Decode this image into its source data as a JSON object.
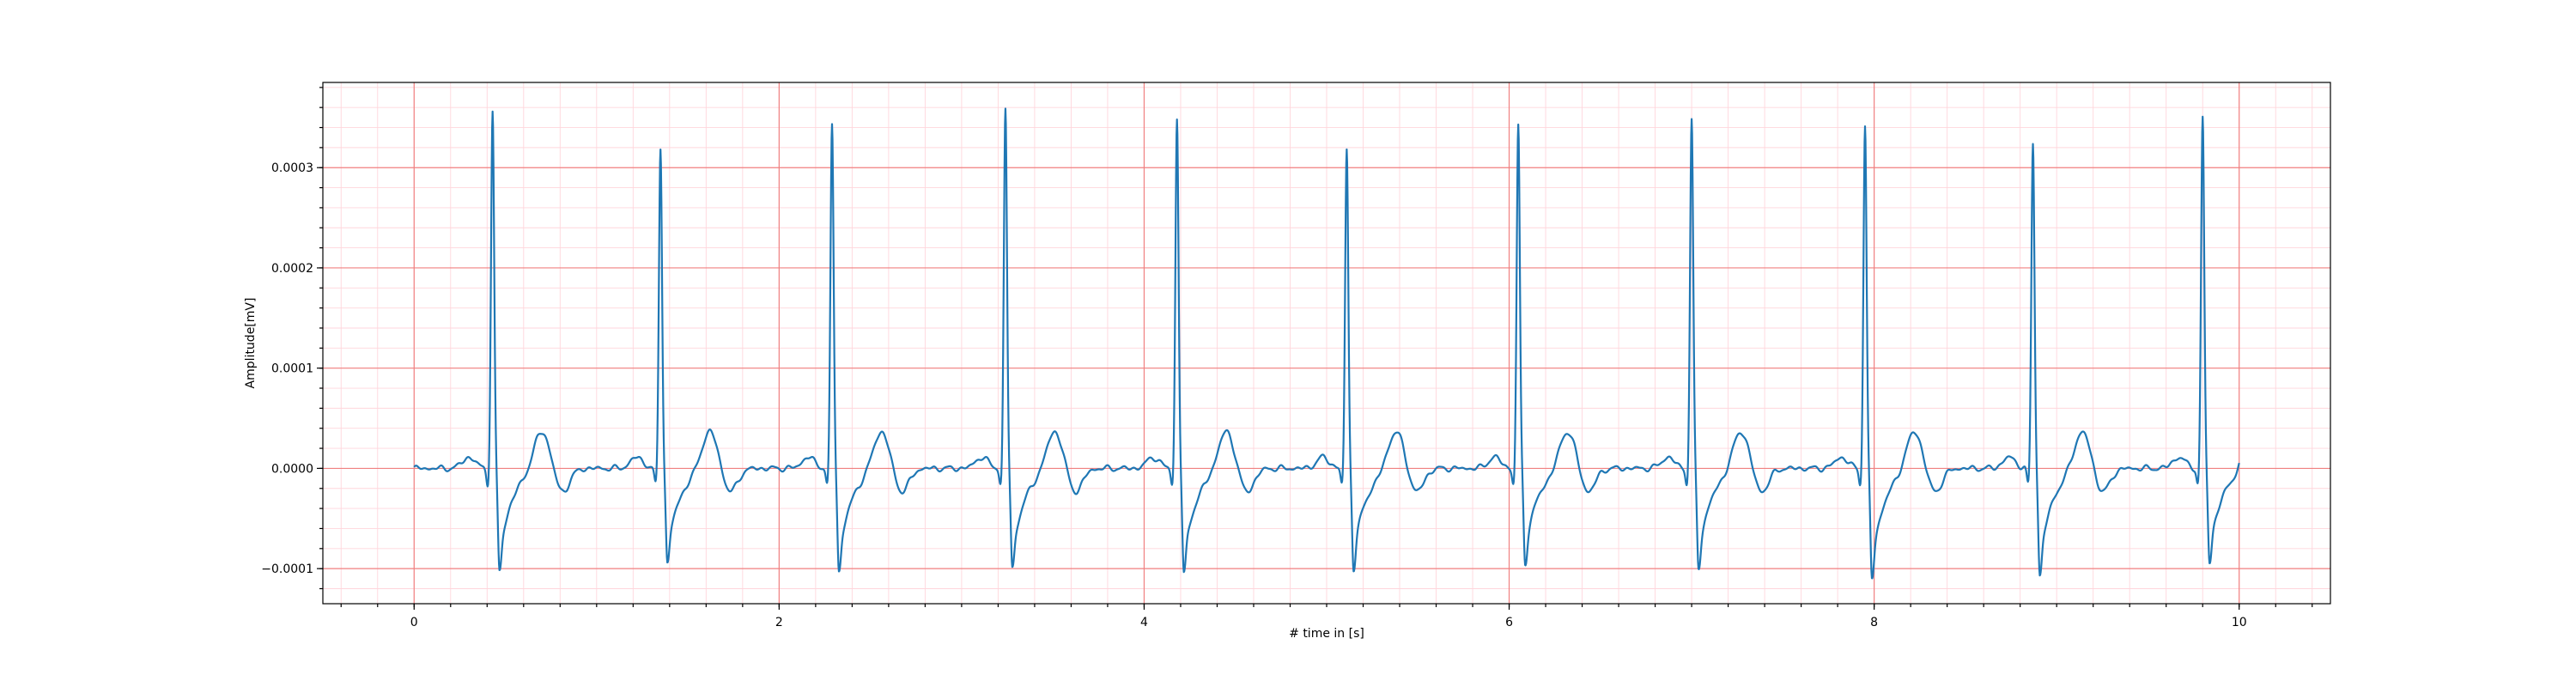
{
  "chart_data": {
    "type": "line",
    "xlabel": "# time in [s]",
    "ylabel": "Amplitude[mV]",
    "xlim": [
      -0.5,
      10.5
    ],
    "ylim": [
      -0.000135,
      0.000385
    ],
    "x_ticks": [
      0,
      2,
      4,
      6,
      8,
      10
    ],
    "x_tick_labels": [
      "0",
      "2",
      "4",
      "6",
      "8",
      "10"
    ],
    "y_ticks": [
      -0.0001,
      0.0,
      0.0001,
      0.0002,
      0.0003
    ],
    "y_tick_labels": [
      "−0.0001",
      "0.0000",
      "0.0001",
      "0.0002",
      "0.0003"
    ],
    "x_minor_step": 0.2,
    "y_minor_step": 2e-05,
    "grid": "major and minor",
    "line_color": "#1f77b4",
    "major_grid_color": "#f08080",
    "minor_grid_color": "#ffd6dc",
    "x_range": [
      0,
      10
    ],
    "r_peaks": [
      {
        "t": 0.43,
        "peak": 0.000355,
        "trough": -0.000102
      },
      {
        "t": 1.35,
        "peak": 0.00032,
        "trough": -9.5e-05
      },
      {
        "t": 2.29,
        "peak": 0.000342,
        "trough": -0.000103
      },
      {
        "t": 3.24,
        "peak": 0.000358,
        "trough": -0.0001
      },
      {
        "t": 4.18,
        "peak": 0.000348,
        "trough": -0.000105
      },
      {
        "t": 5.11,
        "peak": 0.000318,
        "trough": -0.0001
      },
      {
        "t": 6.05,
        "peak": 0.000342,
        "trough": -9.5e-05
      },
      {
        "t": 7.0,
        "peak": 0.000348,
        "trough": -0.0001
      },
      {
        "t": 7.95,
        "peak": 0.000342,
        "trough": -0.00011
      },
      {
        "t": 8.87,
        "peak": 0.000324,
        "trough": -0.000107
      },
      {
        "t": 9.8,
        "peak": 0.00035,
        "trough": -9.4e-05
      }
    ]
  }
}
